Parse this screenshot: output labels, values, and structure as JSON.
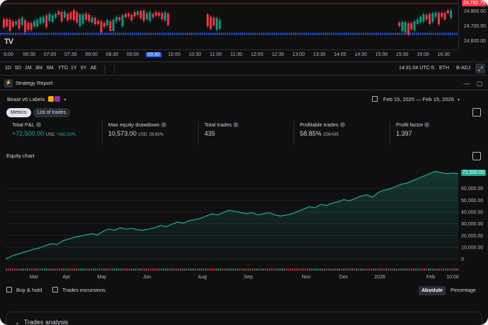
{
  "price_chart": {
    "logo": "TV",
    "prices": [
      "24,800.00",
      "24,700.00",
      "24,600.00"
    ],
    "current_price": "24,782.75",
    "times": [
      "6:00",
      "06:30",
      "07:00",
      "07:30",
      "08:00",
      "08:30",
      "09:00",
      "09:30",
      "10:00",
      "10:30",
      "11:00",
      "11:30",
      "12:00",
      "12:30",
      "13:00",
      "13:30",
      "14:00",
      "14:30",
      "15:00",
      "15:30",
      "16:00",
      "16:30"
    ],
    "selected_time": "09:30"
  },
  "range_bar": {
    "ranges": [
      "1D",
      "5D",
      "1M",
      "3M",
      "6M",
      "YTD",
      "1Y",
      "5Y",
      "All"
    ],
    "clock": "14:31:04 UTC-5",
    "session": "ETH",
    "adjust": "B-ADJ"
  },
  "strategy_report": {
    "tab_label": "Strategy Report",
    "strategy_name": "Beast v6 Labels",
    "date_range": "Feb 15, 2025 — Feb 15, 2026",
    "tabs": [
      "Metrics",
      "List of trades"
    ],
    "metrics": [
      {
        "label": "Total P&L",
        "value": "+72,500.00",
        "unit": "USD",
        "sub": "+362.50%"
      },
      {
        "label": "Max equity drawdown",
        "value": "10,573.00",
        "unit": "USD",
        "sub": "28.83%"
      },
      {
        "label": "Total trades",
        "value": "435",
        "sub": ""
      },
      {
        "label": "Profitable trades",
        "value": "58.85%",
        "sub": "256/435"
      },
      {
        "label": "Profit factor",
        "value": "1.397",
        "sub": ""
      }
    ],
    "equity_title": "Equity chart",
    "equity_last": "72,500.00",
    "equity_axis": [
      "60,000.00",
      "50,000.00",
      "40,000.00",
      "30,000.00",
      "20,000.00",
      "10,000.00",
      "0"
    ],
    "months": [
      "Mar",
      "Apr",
      "May",
      "Jun",
      "Aug",
      "Sep",
      "Nov",
      "Dec",
      "2026",
      "Feb",
      "10:00"
    ],
    "checkboxes": [
      "Buy & hold",
      "Trades excursions"
    ],
    "modes": [
      "Absolute",
      "Percentage"
    ],
    "trades_analysis": "Trades analysis"
  },
  "chart_data": {
    "type": "area",
    "title": "Equity chart",
    "xlabel": "",
    "ylabel": "",
    "ylim": [
      -2000,
      76000
    ],
    "x": [
      0,
      1,
      2,
      3,
      4,
      5,
      6,
      7,
      8,
      9,
      10,
      11,
      12,
      13,
      14,
      15,
      16,
      17,
      18,
      19,
      20,
      21,
      22,
      23,
      24,
      25,
      26,
      27,
      28,
      29,
      30,
      31,
      32,
      33,
      34,
      35,
      36,
      37,
      38,
      39,
      40,
      41,
      42,
      43,
      44,
      45,
      46,
      47,
      48,
      49,
      50,
      51,
      52,
      53,
      54,
      55,
      56,
      57,
      58,
      59,
      60,
      61,
      62,
      63,
      64,
      65,
      66,
      67,
      68,
      69,
      70,
      71,
      72,
      73,
      74,
      75,
      76,
      77,
      78,
      79
    ],
    "series": [
      {
        "values": [
          0,
          2500,
          4000,
          5500,
          7000,
          8500,
          9500,
          11500,
          13000,
          12500,
          15500,
          17000,
          18500,
          19500,
          20500,
          21500,
          20500,
          23500,
          25500,
          24500,
          26500,
          25500,
          26000,
          25000,
          24500,
          25500,
          26500,
          28500,
          27500,
          29500,
          31500,
          30500,
          32500,
          33500,
          34500,
          36500,
          38500,
          37500,
          39500,
          41500,
          40500,
          39500,
          38500,
          39500,
          37500,
          38500,
          39500,
          37500,
          36500,
          37500,
          38500,
          40500,
          42500,
          44500,
          43500,
          46500,
          45500,
          47500,
          48500,
          50500,
          49500,
          51500,
          53500,
          54500,
          52500,
          56500,
          58500,
          59500,
          61500,
          63500,
          64500,
          66500,
          68500,
          70500,
          72500,
          74500,
          73500,
          72500,
          73000,
          72500
        ]
      }
    ],
    "months": [
      "Mar",
      "Apr",
      "May",
      "Jun",
      "Aug",
      "Sep",
      "Nov",
      "Dec",
      "2026",
      "Feb"
    ],
    "grid": true,
    "line_color": "#22ab94"
  }
}
